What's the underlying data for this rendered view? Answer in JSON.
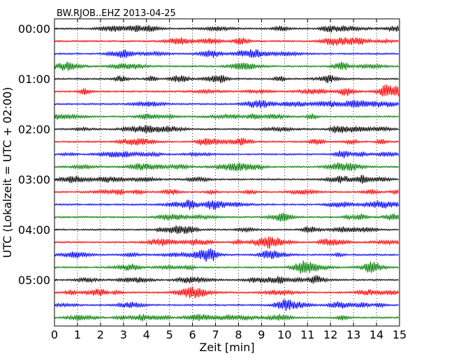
{
  "chart_data": {
    "type": "line",
    "title": "BW.RJOB..EHZ 2013-04-25",
    "xlabel": "Zeit  [min]",
    "ylabel": "UTC (Lokalzeit = UTC + 02:00)",
    "xlim": [
      0,
      15
    ],
    "x_ticks": [
      "0",
      "1",
      "2",
      "3",
      "4",
      "5",
      "6",
      "7",
      "8",
      "9",
      "10",
      "11",
      "12",
      "13",
      "14",
      "15"
    ],
    "y_tick_labels": [
      "00:00",
      "01:00",
      "02:00",
      "03:00",
      "04:00",
      "05:00"
    ],
    "rows_per_hour": 4,
    "row_minutes": 15,
    "row_start_labels": [
      "00:00",
      "00:15",
      "00:30",
      "00:45",
      "01:00",
      "01:15",
      "01:30",
      "01:45",
      "02:00",
      "02:15",
      "02:30",
      "02:45",
      "03:00",
      "03:15",
      "03:30",
      "03:45",
      "04:00",
      "04:15",
      "04:30",
      "04:45",
      "05:00",
      "05:15",
      "05:30",
      "05:45"
    ],
    "row_colors": [
      "#000000",
      "#ff0000",
      "#0000ff",
      "#008000"
    ],
    "grid": "vertical dotted lines at each minute",
    "legend": "none"
  }
}
